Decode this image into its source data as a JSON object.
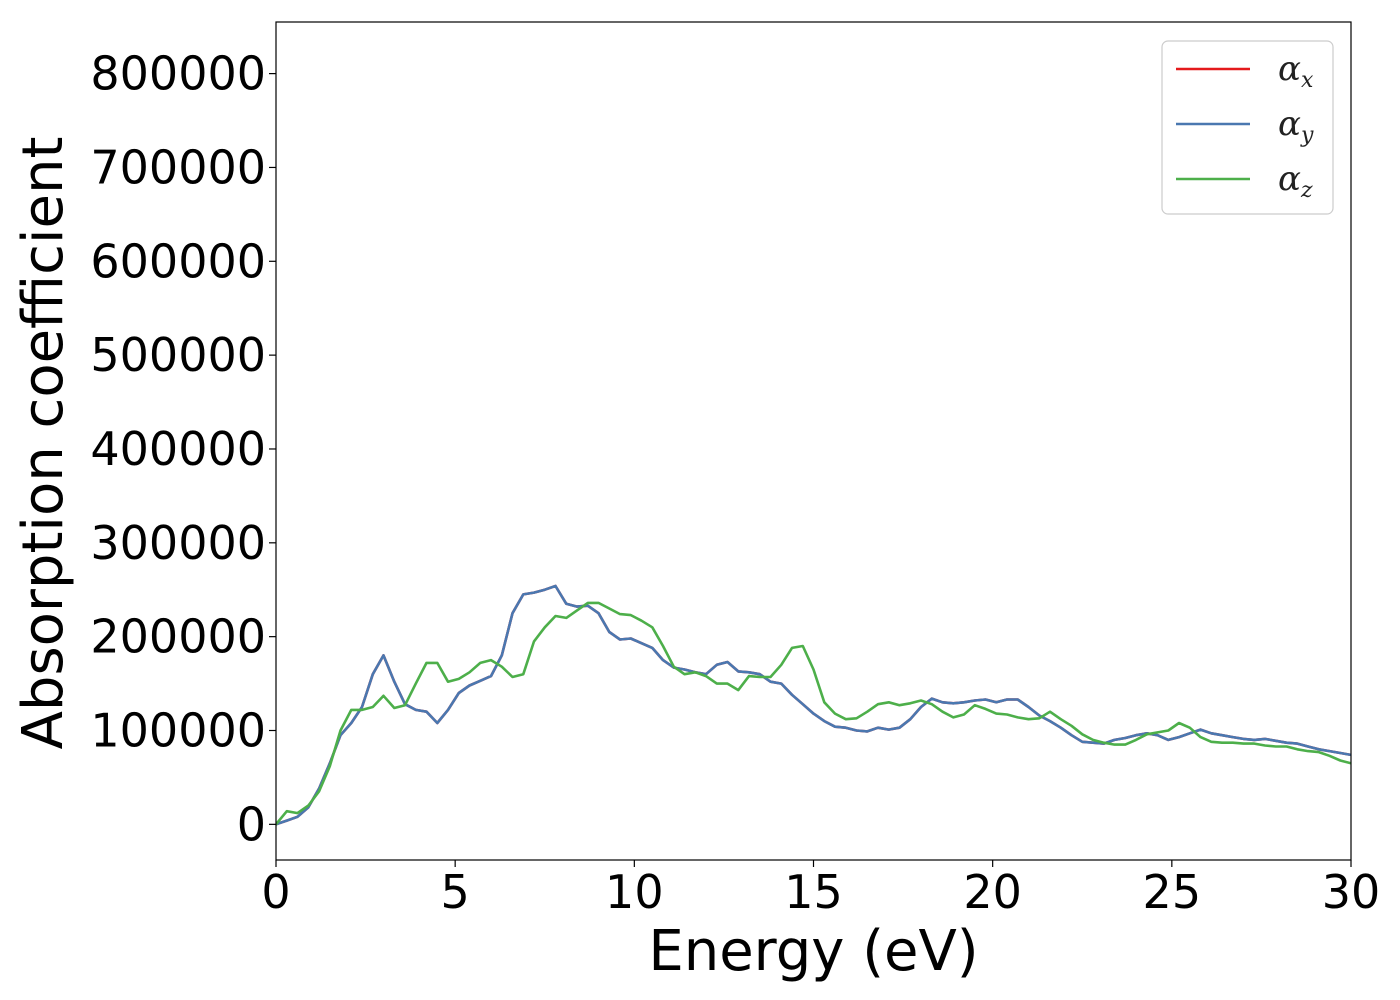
{
  "chart_data": {
    "type": "line",
    "xlabel": "Energy (eV)",
    "ylabel": "Absorption coefficient",
    "xlim": [
      0,
      30
    ],
    "ylim": [
      -38000,
      855000
    ],
    "xticks": [
      0,
      5,
      10,
      15,
      20,
      25,
      30
    ],
    "yticks": [
      0,
      100000,
      200000,
      300000,
      400000,
      500000,
      600000,
      700000,
      800000
    ],
    "grid": false,
    "legend_position": "top-right",
    "series": [
      {
        "name": "αx",
        "symbol": "α",
        "subscript": "x",
        "color": "#e41a1c",
        "x": [
          0,
          0.3,
          0.6,
          0.9,
          1.2,
          1.5,
          1.8,
          2.1,
          2.4,
          2.7,
          3.0,
          3.3,
          3.6,
          3.9,
          4.2,
          4.5,
          4.8,
          5.1,
          5.4,
          5.7,
          6.0,
          6.3,
          6.6,
          6.9,
          7.2,
          7.5,
          7.8,
          8.1,
          8.4,
          8.7,
          9.0,
          9.3,
          9.6,
          9.9,
          10.2,
          10.5,
          10.8,
          11.1,
          11.4,
          11.7,
          12.0,
          12.3,
          12.6,
          12.9,
          13.2,
          13.5,
          13.8,
          14.1,
          14.4,
          14.7,
          15.0,
          15.3,
          15.6,
          15.9,
          16.2,
          16.5,
          16.8,
          17.1,
          17.4,
          17.7,
          18.0,
          18.3,
          18.6,
          18.9,
          19.2,
          19.5,
          19.8,
          20.1,
          20.4,
          20.7,
          21.0,
          21.3,
          21.6,
          21.9,
          22.2,
          22.5,
          22.8,
          23.1,
          23.4,
          23.7,
          24.0,
          24.3,
          24.6,
          24.9,
          25.2,
          25.5,
          25.8,
          26.1,
          26.4,
          26.7,
          27.0,
          27.3,
          27.6,
          27.9,
          28.2,
          28.5,
          28.8,
          29.1,
          29.4,
          29.7,
          30.0
        ],
        "y": [
          0,
          4000,
          8000,
          18000,
          38000,
          65000,
          95000,
          108000,
          125000,
          160000,
          180000,
          152000,
          128000,
          122000,
          120000,
          108000,
          122000,
          140000,
          148000,
          153000,
          158000,
          180000,
          225000,
          245000,
          247000,
          250000,
          254000,
          235000,
          232000,
          233000,
          225000,
          205000,
          197000,
          198000,
          193000,
          188000,
          175000,
          167000,
          165000,
          162000,
          160000,
          170000,
          173000,
          163000,
          162000,
          160000,
          152000,
          150000,
          138000,
          128000,
          118000,
          110000,
          104000,
          103000,
          100000,
          99000,
          103000,
          101000,
          103000,
          112000,
          125000,
          134000,
          130000,
          129000,
          130000,
          132000,
          133000,
          130000,
          133000,
          133000,
          125000,
          116000,
          110000,
          103000,
          95000,
          88000,
          87000,
          86000,
          90000,
          92000,
          95000,
          97000,
          95000,
          90000,
          93000,
          97000,
          101000,
          97000,
          95000,
          93000,
          91000,
          90000,
          91000,
          89000,
          87000,
          86000,
          83000,
          80000,
          78000,
          76000,
          74000
        ]
      },
      {
        "name": "αy",
        "symbol": "α",
        "subscript": "y",
        "color": "#4a78b0",
        "x": [
          0,
          0.3,
          0.6,
          0.9,
          1.2,
          1.5,
          1.8,
          2.1,
          2.4,
          2.7,
          3.0,
          3.3,
          3.6,
          3.9,
          4.2,
          4.5,
          4.8,
          5.1,
          5.4,
          5.7,
          6.0,
          6.3,
          6.6,
          6.9,
          7.2,
          7.5,
          7.8,
          8.1,
          8.4,
          8.7,
          9.0,
          9.3,
          9.6,
          9.9,
          10.2,
          10.5,
          10.8,
          11.1,
          11.4,
          11.7,
          12.0,
          12.3,
          12.6,
          12.9,
          13.2,
          13.5,
          13.8,
          14.1,
          14.4,
          14.7,
          15.0,
          15.3,
          15.6,
          15.9,
          16.2,
          16.5,
          16.8,
          17.1,
          17.4,
          17.7,
          18.0,
          18.3,
          18.6,
          18.9,
          19.2,
          19.5,
          19.8,
          20.1,
          20.4,
          20.7,
          21.0,
          21.3,
          21.6,
          21.9,
          22.2,
          22.5,
          22.8,
          23.1,
          23.4,
          23.7,
          24.0,
          24.3,
          24.6,
          24.9,
          25.2,
          25.5,
          25.8,
          26.1,
          26.4,
          26.7,
          27.0,
          27.3,
          27.6,
          27.9,
          28.2,
          28.5,
          28.8,
          29.1,
          29.4,
          29.7,
          30.0
        ],
        "y": [
          0,
          4000,
          8000,
          18000,
          38000,
          65000,
          95000,
          108000,
          125000,
          160000,
          180000,
          152000,
          128000,
          122000,
          120000,
          108000,
          122000,
          140000,
          148000,
          153000,
          158000,
          180000,
          225000,
          245000,
          247000,
          250000,
          254000,
          235000,
          232000,
          233000,
          225000,
          205000,
          197000,
          198000,
          193000,
          188000,
          175000,
          167000,
          165000,
          162000,
          160000,
          170000,
          173000,
          163000,
          162000,
          160000,
          152000,
          150000,
          138000,
          128000,
          118000,
          110000,
          104000,
          103000,
          100000,
          99000,
          103000,
          101000,
          103000,
          112000,
          125000,
          134000,
          130000,
          129000,
          130000,
          132000,
          133000,
          130000,
          133000,
          133000,
          125000,
          116000,
          110000,
          103000,
          95000,
          88000,
          87000,
          86000,
          90000,
          92000,
          95000,
          97000,
          95000,
          90000,
          93000,
          97000,
          101000,
          97000,
          95000,
          93000,
          91000,
          90000,
          91000,
          89000,
          87000,
          86000,
          83000,
          80000,
          78000,
          76000,
          74000
        ]
      },
      {
        "name": "αz",
        "symbol": "α",
        "subscript": "z",
        "color": "#4daf4a",
        "x": [
          0,
          0.3,
          0.6,
          0.9,
          1.2,
          1.5,
          1.8,
          2.1,
          2.4,
          2.7,
          3.0,
          3.3,
          3.6,
          3.9,
          4.2,
          4.5,
          4.8,
          5.1,
          5.4,
          5.7,
          6.0,
          6.3,
          6.6,
          6.9,
          7.2,
          7.5,
          7.8,
          8.1,
          8.4,
          8.7,
          9.0,
          9.3,
          9.6,
          9.9,
          10.2,
          10.5,
          10.8,
          11.1,
          11.4,
          11.7,
          12.0,
          12.3,
          12.6,
          12.9,
          13.2,
          13.5,
          13.8,
          14.1,
          14.4,
          14.7,
          15.0,
          15.3,
          15.6,
          15.9,
          16.2,
          16.5,
          16.8,
          17.1,
          17.4,
          17.7,
          18.0,
          18.3,
          18.6,
          18.9,
          19.2,
          19.5,
          19.8,
          20.1,
          20.4,
          20.7,
          21.0,
          21.3,
          21.6,
          21.9,
          22.2,
          22.5,
          22.8,
          23.1,
          23.4,
          23.7,
          24.0,
          24.3,
          24.6,
          24.9,
          25.2,
          25.5,
          25.8,
          26.1,
          26.4,
          26.7,
          27.0,
          27.3,
          27.6,
          27.9,
          28.2,
          28.5,
          28.8,
          29.1,
          29.4,
          29.7,
          30.0
        ],
        "y": [
          0,
          14000,
          12000,
          20000,
          35000,
          62000,
          100000,
          122000,
          122000,
          125000,
          137000,
          124000,
          127000,
          150000,
          172000,
          172000,
          152000,
          155000,
          162000,
          172000,
          175000,
          168000,
          157000,
          160000,
          195000,
          210000,
          222000,
          220000,
          228000,
          236000,
          236000,
          230000,
          224000,
          223000,
          217000,
          210000,
          190000,
          168000,
          160000,
          162000,
          158000,
          150000,
          150000,
          143000,
          158000,
          157000,
          157000,
          170000,
          188000,
          190000,
          165000,
          130000,
          118000,
          112000,
          113000,
          120000,
          128000,
          130000,
          127000,
          129000,
          132000,
          128000,
          120000,
          114000,
          117000,
          127000,
          123000,
          118000,
          117000,
          114000,
          112000,
          113000,
          120000,
          112000,
          105000,
          96000,
          90000,
          87000,
          85000,
          85000,
          90000,
          96000,
          98000,
          100000,
          108000,
          103000,
          93000,
          88000,
          87000,
          87000,
          86000,
          86000,
          84000,
          83000,
          83000,
          80000,
          78000,
          77000,
          73000,
          68000,
          65000
        ]
      }
    ]
  }
}
